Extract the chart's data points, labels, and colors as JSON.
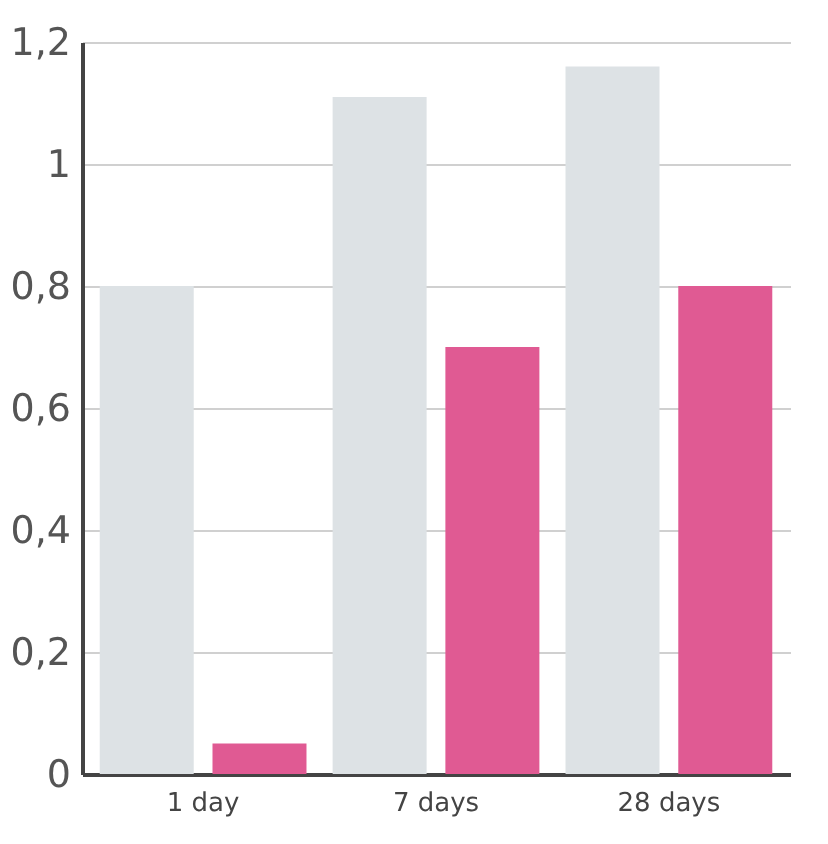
{
  "chart_data": {
    "type": "bar",
    "categories": [
      "1 day",
      "7 days",
      "28 days"
    ],
    "series": [
      {
        "color": "#dde2e5",
        "values": [
          0.8,
          1.11,
          1.16
        ]
      },
      {
        "color": "#e05a93",
        "values": [
          0.05,
          0.7,
          0.8
        ]
      }
    ],
    "ylim": [
      0,
      1.2
    ],
    "yticks": [
      0,
      {
        "value": 0.2,
        "label": "0,2"
      },
      {
        "value": 0.4,
        "label": "0,4"
      },
      {
        "value": 0.6,
        "label": "0,6"
      },
      {
        "value": 0.8,
        "label": "0,8"
      },
      1,
      {
        "value": 1.2,
        "label": "1,2"
      }
    ],
    "grid": "y",
    "legend": false
  }
}
